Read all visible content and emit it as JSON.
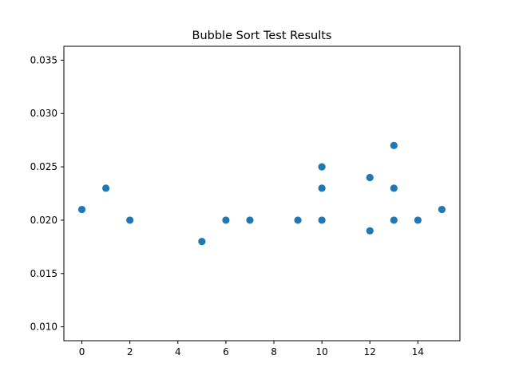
{
  "chart_data": {
    "type": "scatter",
    "title": "Bubble Sort Test Results",
    "xlabel": "",
    "ylabel": "",
    "xlim": [
      -0.75,
      15.75
    ],
    "ylim": [
      0.0087,
      0.0363
    ],
    "xticks": [
      0,
      2,
      4,
      6,
      8,
      10,
      12,
      14
    ],
    "yticks": [
      0.01,
      0.015,
      0.02,
      0.025,
      0.03,
      0.035
    ],
    "xtick_labels": [
      "0",
      "2",
      "4",
      "6",
      "8",
      "10",
      "12",
      "14"
    ],
    "ytick_labels": [
      "0.010",
      "0.015",
      "0.020",
      "0.025",
      "0.030",
      "0.035"
    ],
    "grid": false,
    "marker_color": "#1f77b4",
    "points": [
      {
        "x": 0,
        "y": 0.021
      },
      {
        "x": 1,
        "y": 0.023
      },
      {
        "x": 2,
        "y": 0.02
      },
      {
        "x": 5,
        "y": 0.018
      },
      {
        "x": 6,
        "y": 0.02
      },
      {
        "x": 7,
        "y": 0.02
      },
      {
        "x": 9,
        "y": 0.02
      },
      {
        "x": 10,
        "y": 0.025
      },
      {
        "x": 10,
        "y": 0.023
      },
      {
        "x": 10,
        "y": 0.02
      },
      {
        "x": 12,
        "y": 0.024
      },
      {
        "x": 12,
        "y": 0.019
      },
      {
        "x": 13,
        "y": 0.027
      },
      {
        "x": 13,
        "y": 0.023
      },
      {
        "x": 13,
        "y": 0.02
      },
      {
        "x": 14,
        "y": 0.02
      },
      {
        "x": 15,
        "y": 0.021
      }
    ]
  }
}
